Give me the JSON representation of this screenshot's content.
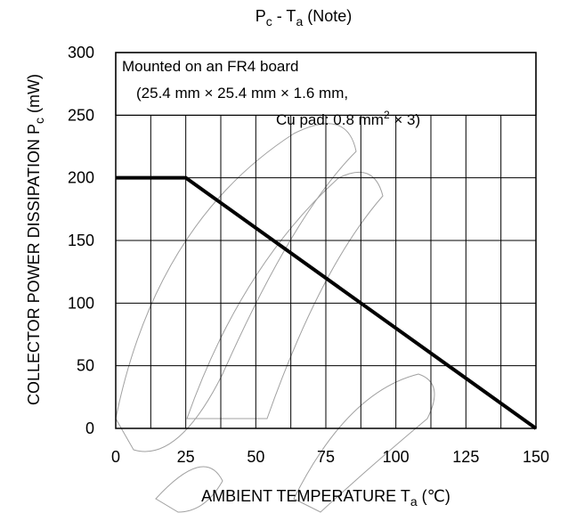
{
  "chart_data": {
    "type": "line",
    "title": {
      "main": "P",
      "main_sub": "c",
      "sep": " - T",
      "sep_sub": "a",
      "note": "   (Note)"
    },
    "xlabel": {
      "text": "AMBIENT TEMPERATURE T",
      "sub": "a",
      "unit": " (℃)"
    },
    "ylabel": {
      "text": "COLLECTOR POWER DISSIPATION  P",
      "sub": "c",
      "unit": "  (mW)"
    },
    "xlim": [
      0,
      150
    ],
    "ylim": [
      0,
      300
    ],
    "x_ticks": [
      "0",
      "25",
      "50",
      "75",
      "100",
      "125",
      "150"
    ],
    "y_ticks": [
      "0",
      "50",
      "100",
      "150",
      "200",
      "250",
      "300"
    ],
    "grid": true,
    "series": [
      {
        "x": [
          0,
          25,
          150
        ],
        "y": [
          200,
          200,
          0
        ]
      }
    ],
    "annotation": {
      "line1": "Mounted on an FR4 board",
      "line2": "(25.4 mm × 25.4 mm × 1.6 mm,",
      "line3_prefix": "Cu pad: 0.8 mm",
      "line3_sup": "2",
      "line3_suffix": " × 3)"
    }
  }
}
